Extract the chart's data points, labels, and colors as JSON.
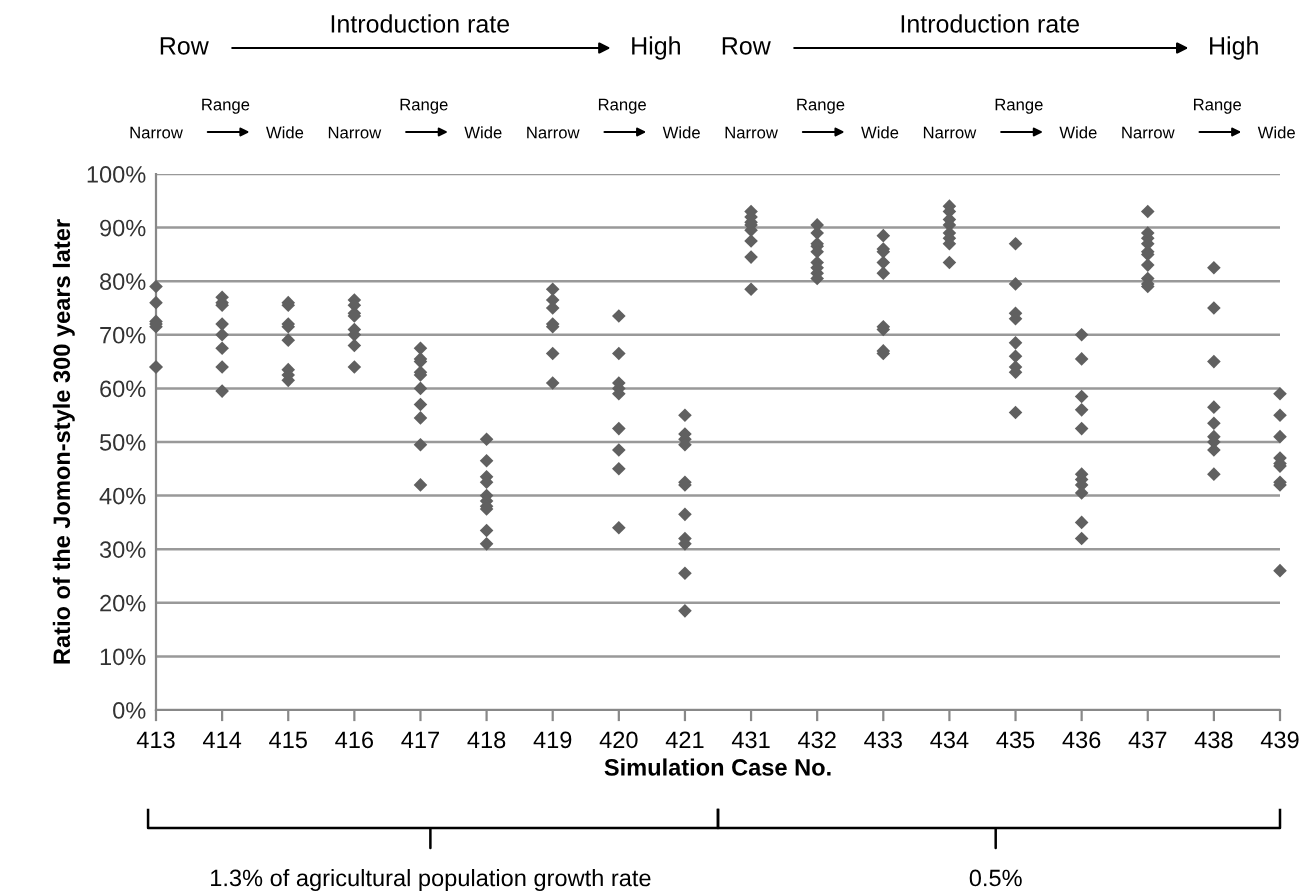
{
  "chart_data": {
    "type": "scatter",
    "xlabel": "Simulation Case No.",
    "ylabel": "Ratio of the Jomon-style 300 years later",
    "categories": [
      "413",
      "414",
      "415",
      "416",
      "417",
      "418",
      "419",
      "420",
      "421",
      "431",
      "432",
      "433",
      "434",
      "435",
      "436",
      "437",
      "438",
      "439"
    ],
    "series": [
      {
        "color": "#606060",
        "marker": "diamond",
        "x": [
          "413",
          "413",
          "413",
          "413",
          "413",
          "413",
          "413",
          "414",
          "414",
          "414",
          "414",
          "414",
          "414",
          "414",
          "414",
          "415",
          "415",
          "415",
          "415",
          "415",
          "415",
          "415",
          "415",
          "416",
          "416",
          "416",
          "416",
          "416",
          "416",
          "416",
          "416",
          "417",
          "417",
          "417",
          "417",
          "417",
          "417",
          "417",
          "417",
          "417",
          "417",
          "418",
          "418",
          "418",
          "418",
          "418",
          "418",
          "418",
          "418",
          "418",
          "418",
          "419",
          "419",
          "419",
          "419",
          "419",
          "419",
          "419",
          "420",
          "420",
          "420",
          "420",
          "420",
          "420",
          "420",
          "420",
          "420",
          "421",
          "421",
          "421",
          "421",
          "421",
          "421",
          "421",
          "421",
          "421",
          "421",
          "421",
          "431",
          "431",
          "431",
          "431",
          "431",
          "431",
          "431",
          "431",
          "432",
          "432",
          "432",
          "432",
          "432",
          "432",
          "432",
          "432",
          "432",
          "433",
          "433",
          "433",
          "433",
          "433",
          "433",
          "433",
          "433",
          "433",
          "434",
          "434",
          "434",
          "434",
          "434",
          "434",
          "434",
          "434",
          "435",
          "435",
          "435",
          "435",
          "435",
          "435",
          "435",
          "435",
          "435",
          "436",
          "436",
          "436",
          "436",
          "436",
          "436",
          "436",
          "436",
          "436",
          "436",
          "436",
          "437",
          "437",
          "437",
          "437",
          "437",
          "437",
          "437",
          "437",
          "437",
          "437",
          "438",
          "438",
          "438",
          "438",
          "438",
          "438",
          "438",
          "438",
          "438",
          "439",
          "439",
          "439",
          "439",
          "439",
          "439",
          "439",
          "439",
          "439"
        ],
        "values": [
          79,
          76,
          72.5,
          72,
          71.5,
          64,
          64,
          77,
          76,
          75.5,
          72,
          70,
          67.5,
          64,
          59.5,
          76,
          75.5,
          72,
          71.5,
          69,
          63.5,
          62.5,
          61.5,
          76.5,
          75.5,
          74,
          73.5,
          71,
          70,
          68,
          64,
          67.5,
          65.5,
          65,
          63,
          62.5,
          60,
          57,
          54.5,
          49.5,
          42,
          50.5,
          46.5,
          43.5,
          42.5,
          40,
          39,
          38,
          37.5,
          33.5,
          31,
          78.5,
          76.5,
          75,
          72,
          71.5,
          66.5,
          61,
          73.5,
          66.5,
          61,
          60,
          59,
          52.5,
          48.5,
          45,
          34,
          55,
          51.5,
          50.5,
          49.5,
          42.5,
          42,
          36.5,
          32,
          31,
          25.5,
          18.5,
          93,
          92,
          91,
          90.5,
          89.5,
          87.5,
          84.5,
          78.5,
          90.5,
          89,
          87,
          86.5,
          85.5,
          83.5,
          82.5,
          81.5,
          80.5,
          88.5,
          86,
          85.5,
          83.5,
          81.5,
          71.5,
          71,
          67,
          66.5,
          94,
          93,
          91.5,
          90.5,
          89,
          88,
          87,
          83.5,
          87,
          79.5,
          74,
          73,
          68.5,
          66,
          64,
          63,
          55.5,
          70,
          65.5,
          58.5,
          56,
          52.5,
          44,
          43,
          42,
          40.5,
          35,
          32,
          93,
          89,
          88,
          87,
          85.5,
          85,
          83,
          80.5,
          79.5,
          79,
          82.5,
          75,
          65,
          56.5,
          53.5,
          51,
          50,
          48.5,
          44,
          59,
          55,
          51,
          47,
          46,
          45.5,
          42.5,
          42,
          26
        ]
      }
    ],
    "ylim": [
      0,
      100
    ],
    "yticks": [
      {
        "value": 0,
        "label": "0%"
      },
      {
        "value": 10,
        "label": "10%"
      },
      {
        "value": 20,
        "label": "20%"
      },
      {
        "value": 30,
        "label": "30%"
      },
      {
        "value": 40,
        "label": "40%"
      },
      {
        "value": 50,
        "label": "50%"
      },
      {
        "value": 60,
        "label": "60%"
      },
      {
        "value": 70,
        "label": "70%"
      },
      {
        "value": 80,
        "label": "80%"
      },
      {
        "value": 90,
        "label": "90%"
      },
      {
        "value": 100,
        "label": "100%"
      }
    ],
    "grid": "y",
    "legend": false,
    "annotations": [
      "Row",
      "Introduction rate",
      "High",
      "Row",
      "Introduction rate",
      "High",
      "Narrow",
      "Range",
      "Wide",
      "Narrow",
      "Range",
      "Wide",
      "Narrow",
      "Range",
      "Wide",
      "Narrow",
      "Range",
      "Wide",
      "Narrow",
      "Range",
      "Wide",
      "Narrow",
      "Range",
      "Wide",
      "1.3% of agricultural population growth rate",
      "0.5%"
    ]
  }
}
